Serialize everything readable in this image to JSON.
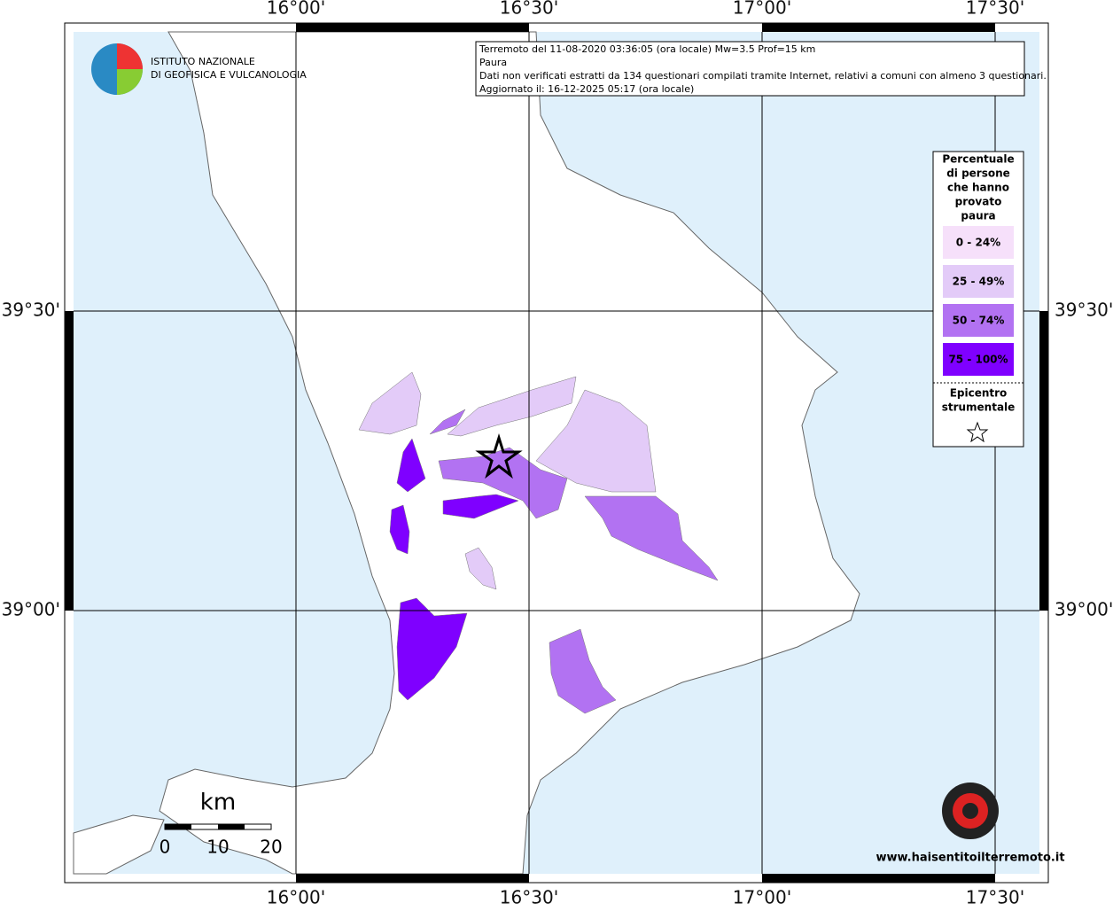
{
  "logo": {
    "line1": "ISTITUTO NAZIONALE",
    "line2": "DI GEOFISICA E VULCANOLOGIA"
  },
  "info": {
    "lines": [
      "Terremoto del 11-08-2020 03:36:05 (ora locale) Mw=3.5 Prof=15 km",
      "Paura",
      "Dati non verificati estratti da 134 questionari compilati tramite Internet, relativi a comuni con almeno 3 questionari.",
      "Aggiornato il: 16-12-2025 05:17 (ora locale)"
    ]
  },
  "axes": {
    "top": [
      "16°00'",
      "16°30'",
      "17°00'",
      "17°30'"
    ],
    "bottom": [
      "16°00'",
      "16°30'",
      "17°00'",
      "17°30'"
    ],
    "left": [
      "39°30'",
      "39°00'"
    ],
    "right": [
      "39°30'",
      "39°00'"
    ]
  },
  "legend": {
    "title_lines": [
      "Percentuale",
      "di persone",
      "che hanno",
      "provato",
      "paura"
    ],
    "classes": [
      {
        "label": "0 - 24%",
        "color": "#f6e0fa"
      },
      {
        "label": "25 - 49%",
        "color": "#e3cbf8"
      },
      {
        "label": "50 - 74%",
        "color": "#b272f2"
      },
      {
        "label": "75 - 100%",
        "color": "#7f00ff"
      }
    ],
    "epicenter_lines": [
      "Epicentro",
      "strumentale"
    ]
  },
  "scale": {
    "unit": "km",
    "labels": [
      "0",
      "10",
      "20"
    ]
  },
  "watermark": "www.haisentitoilterremoto.it"
}
